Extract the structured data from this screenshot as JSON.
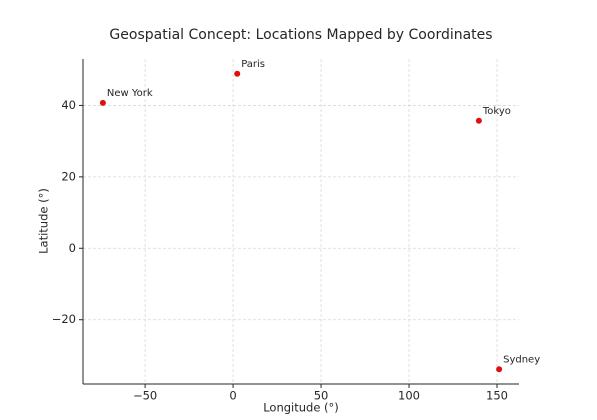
{
  "chart_data": {
    "type": "scatter",
    "title": "Geospatial Concept: Locations Mapped by Coordinates",
    "x_label": "Longitude (°)",
    "y_label": "Latitude (°)",
    "point_labels": [
      "New York",
      "Paris",
      "Tokyo",
      "Sydney"
    ],
    "x": [
      -74.0,
      2.35,
      139.7,
      151.2
    ],
    "values": [
      40.7,
      48.86,
      35.7,
      -33.87
    ],
    "color": "#e0100f",
    "xlim": [
      -85.3,
      162.5
    ],
    "ylim": [
      -38.0,
      53.0
    ],
    "xticks": [
      {
        "value": -50,
        "label": "−50"
      },
      0,
      50,
      100,
      150
    ],
    "yticks": [
      {
        "value": -20,
        "label": "−20"
      },
      0,
      20,
      40
    ],
    "grid": true
  }
}
